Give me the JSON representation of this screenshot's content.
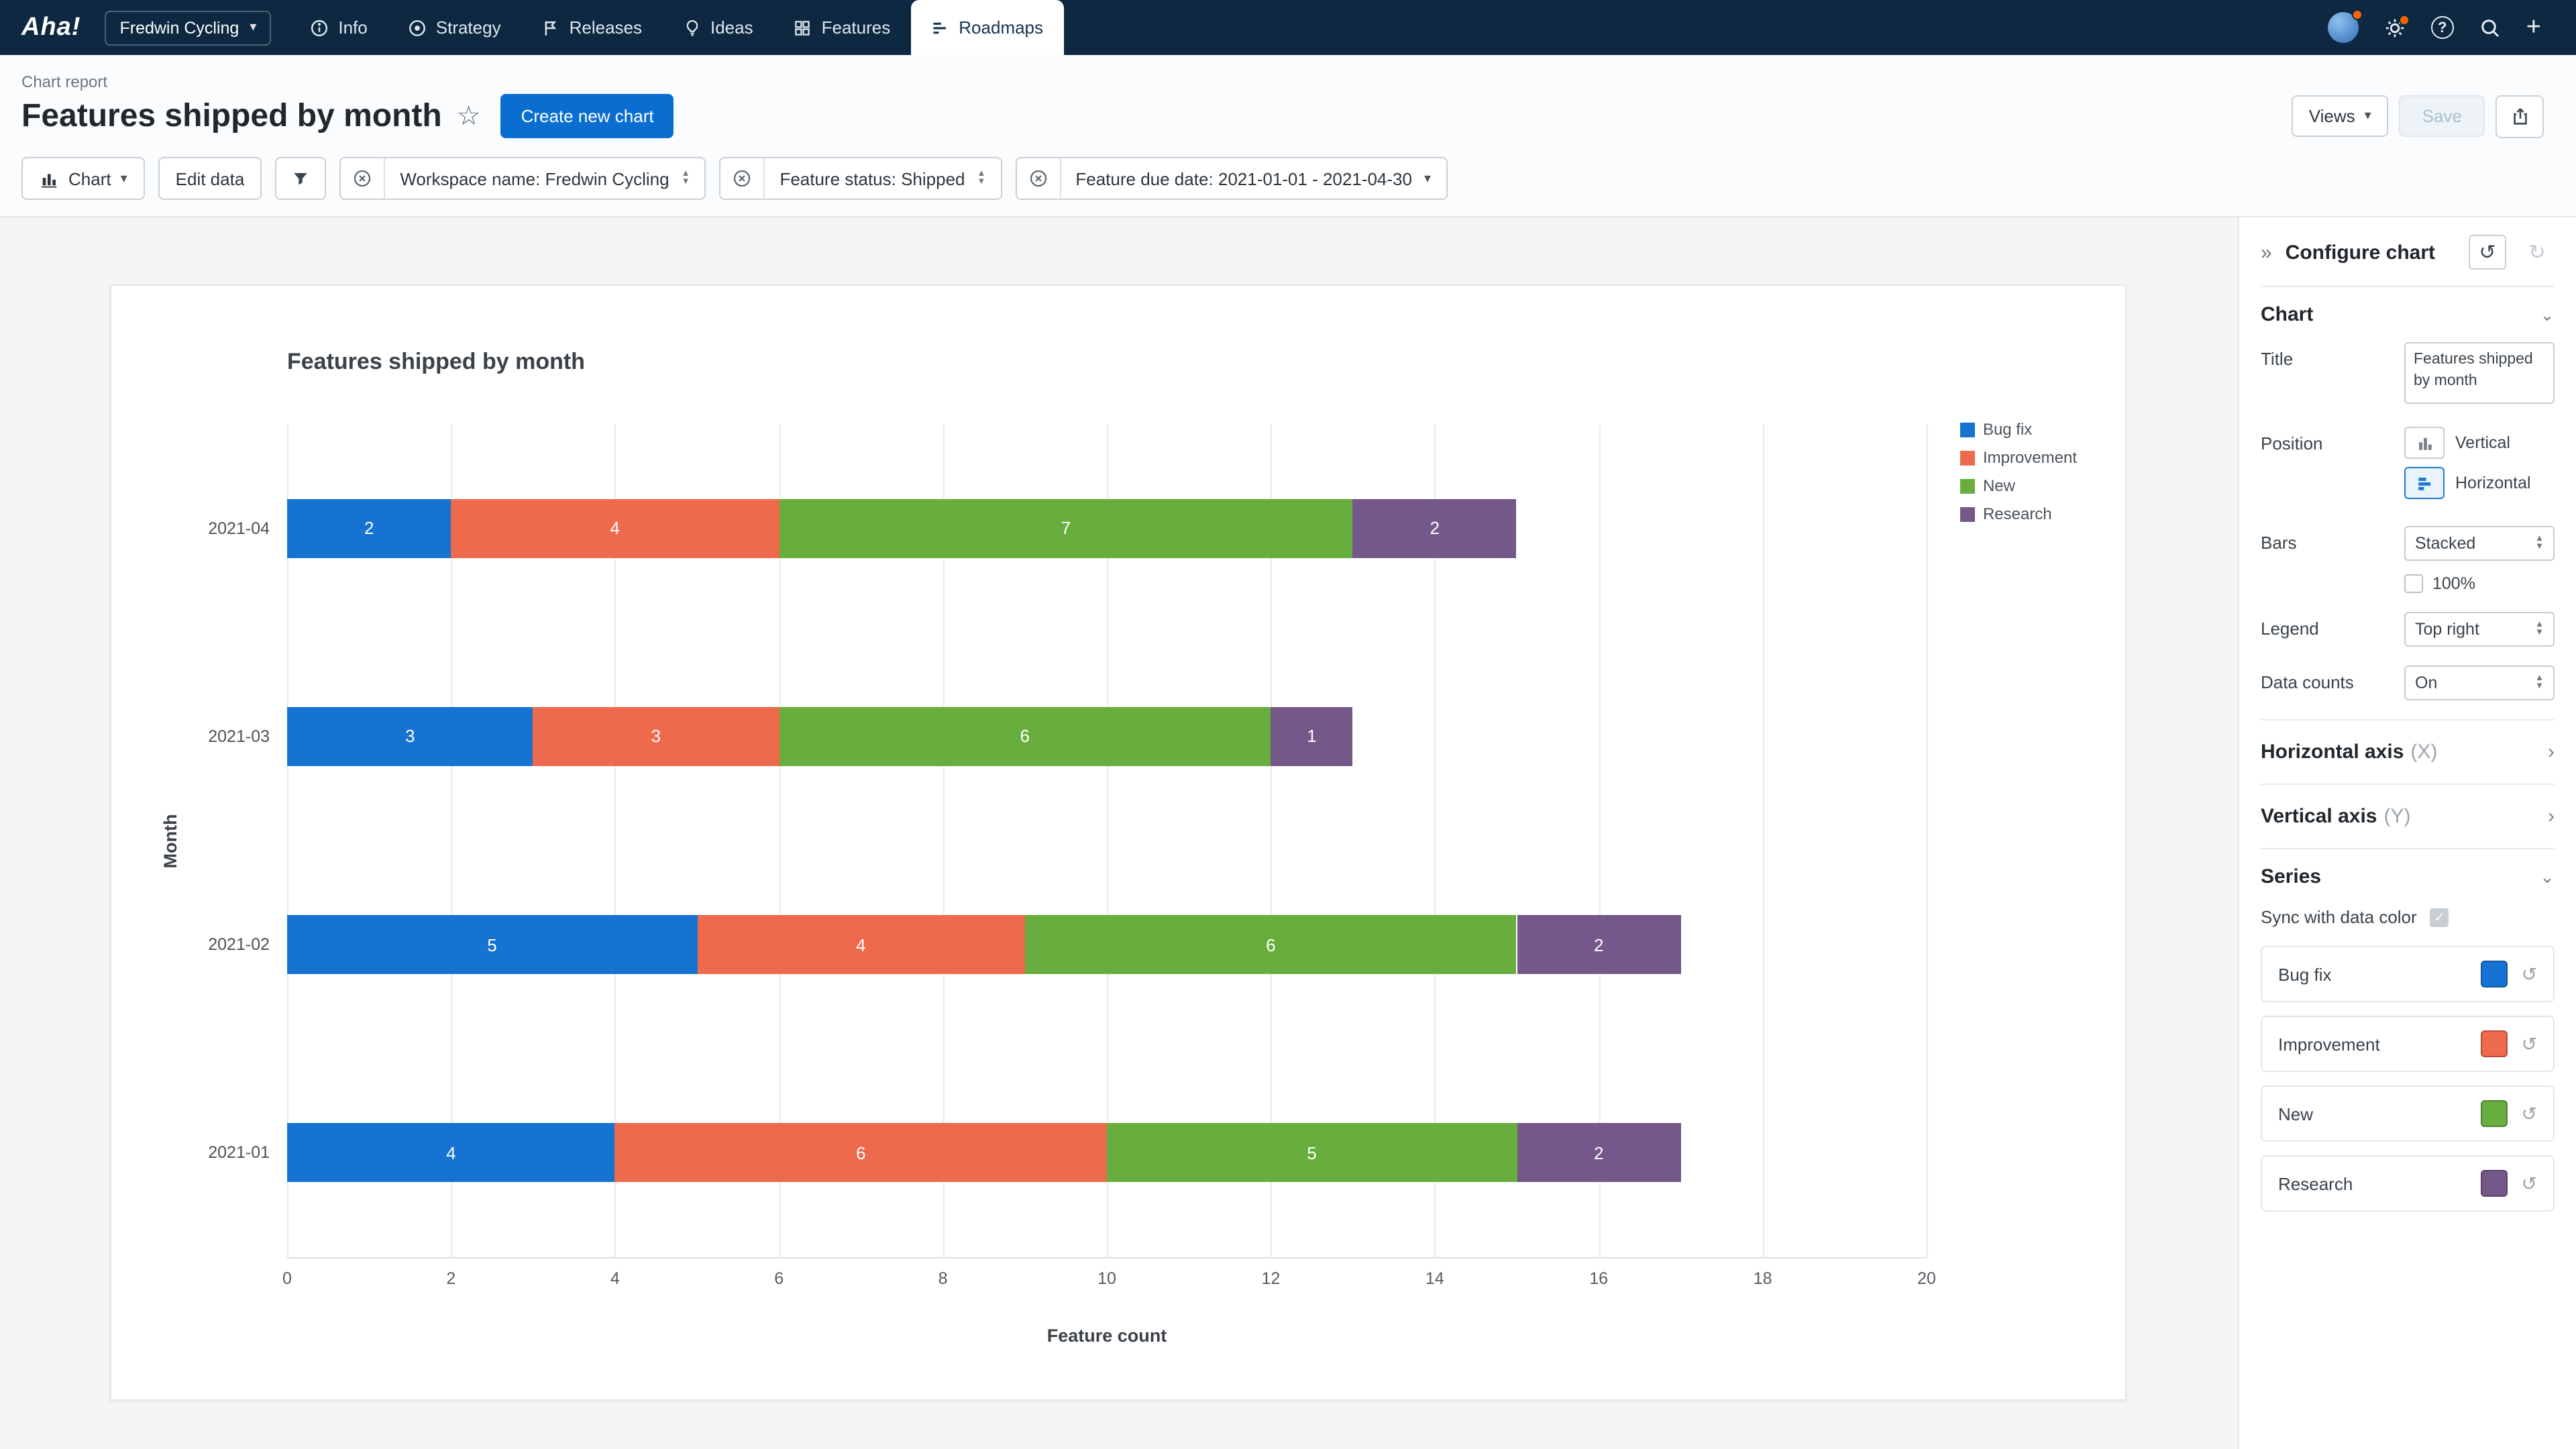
{
  "nav": {
    "logo": "Aha!",
    "workspace": "Fredwin Cycling",
    "items": [
      {
        "label": "Info"
      },
      {
        "label": "Strategy"
      },
      {
        "label": "Releases"
      },
      {
        "label": "Ideas"
      },
      {
        "label": "Features"
      },
      {
        "label": "Roadmaps"
      }
    ],
    "active_item": "Roadmaps"
  },
  "header": {
    "breadcrumb": "Chart report",
    "title": "Features shipped by month",
    "create_button": "Create new chart",
    "views_button": "Views",
    "save_button": "Save"
  },
  "toolbar": {
    "chart_button": "Chart",
    "edit_data_button": "Edit data",
    "filters": [
      "Workspace name: Fredwin Cycling",
      "Feature status: Shipped",
      "Feature due date: 2021-01-01 - 2021-04-30"
    ]
  },
  "chart_data": {
    "type": "bar",
    "orientation": "horizontal",
    "stacked": true,
    "title": "Features shipped by month",
    "categories": [
      "2021-04",
      "2021-03",
      "2021-02",
      "2021-01"
    ],
    "series": [
      {
        "name": "Bug fix",
        "color": "#1673d1",
        "values": [
          2,
          3,
          5,
          4
        ]
      },
      {
        "name": "Improvement",
        "color": "#ee6a4c",
        "values": [
          4,
          3,
          4,
          6
        ]
      },
      {
        "name": "New",
        "color": "#67ae3e",
        "values": [
          7,
          6,
          6,
          5
        ]
      },
      {
        "name": "Research",
        "color": "#75588a",
        "values": [
          2,
          1,
          2,
          2
        ]
      }
    ],
    "xlabel": "Feature count",
    "ylabel": "Month",
    "xlim": [
      0,
      20
    ],
    "xticks": [
      0,
      2,
      4,
      6,
      8,
      10,
      12,
      14,
      16,
      18,
      20
    ],
    "legend_position": "top right",
    "data_counts": true,
    "grid": true
  },
  "panel": {
    "title": "Configure chart",
    "chart_section": {
      "label": "Chart",
      "title_label": "Title",
      "title_value": "Features shipped by month",
      "position_label": "Position",
      "position_vertical": "Vertical",
      "position_horizontal": "Horizontal",
      "position_selected": "Horizontal",
      "bars_label": "Bars",
      "bars_value": "Stacked",
      "bars_100_label": "100%",
      "bars_100_checked": false,
      "legend_label": "Legend",
      "legend_value": "Top right",
      "data_counts_label": "Data counts",
      "data_counts_value": "On"
    },
    "horizontal_axis": {
      "label": "Horizontal axis",
      "suffix": "(X)"
    },
    "vertical_axis": {
      "label": "Vertical axis",
      "suffix": "(Y)"
    },
    "series_section": {
      "label": "Series",
      "sync_label": "Sync with data color",
      "sync_checked": true,
      "items": [
        {
          "name": "Bug fix",
          "color": "#1673d1"
        },
        {
          "name": "Improvement",
          "color": "#ee6a4c"
        },
        {
          "name": "New",
          "color": "#67ae3e"
        },
        {
          "name": "Research",
          "color": "#75588a"
        }
      ]
    }
  },
  "glyphs": {
    "star": "☆",
    "undo": "↺",
    "redo": "↻",
    "collapse": "»",
    "chevron_down": "⌄",
    "chevron_right": "›",
    "caret_down": "▾",
    "up": "▲",
    "down": "▼",
    "plus": "+",
    "question": "?",
    "check": "✓"
  },
  "colors": {
    "nav_bg": "#0d2840",
    "primary_blue": "#0a6ed1",
    "badge_orange": "#fa6400"
  }
}
